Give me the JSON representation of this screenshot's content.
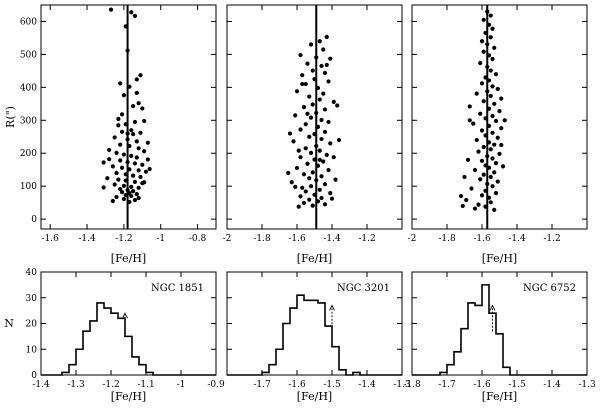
{
  "chart_data": [
    {
      "id": "scatter_ngc1851",
      "type": "scatter",
      "xlabel": "[Fe/H]",
      "ylabel": "R(\")",
      "xlim": [
        -1.65,
        -0.7
      ],
      "ylim": [
        -30,
        650
      ],
      "xticks": [
        -1.6,
        -1.4,
        -1.2,
        -1,
        -0.8
      ],
      "xtick_labels": [
        "-1.6",
        "-1.4",
        "-1.2",
        "-1",
        "-0.8"
      ],
      "yticks": [
        0,
        100,
        200,
        300,
        400,
        500,
        600
      ],
      "ytick_labels": [
        "0",
        "100",
        "200",
        "300",
        "400",
        "500",
        "600"
      ],
      "mean_feh": -1.18,
      "points": [
        [
          -1.27,
          636
        ],
        [
          -1.19,
          585
        ],
        [
          -1.16,
          628
        ],
        [
          -1.14,
          617
        ],
        [
          -1.18,
          512
        ],
        [
          -1.11,
          437
        ],
        [
          -1.13,
          424
        ],
        [
          -1.22,
          412
        ],
        [
          -1.17,
          402
        ],
        [
          -1.13,
          383
        ],
        [
          -1.2,
          376
        ],
        [
          -1.12,
          352
        ],
        [
          -1.15,
          343
        ],
        [
          -1.1,
          336
        ],
        [
          -1.23,
          304
        ],
        [
          -1.19,
          288
        ],
        [
          -1.14,
          295
        ],
        [
          -1.21,
          265
        ],
        [
          -1.16,
          270
        ],
        [
          -1.11,
          262
        ],
        [
          -1.25,
          248
        ],
        [
          -1.18,
          242
        ],
        [
          -1.13,
          236
        ],
        [
          -1.07,
          232
        ],
        [
          -1.22,
          226
        ],
        [
          -1.17,
          222
        ],
        [
          -1.12,
          215
        ],
        [
          -1.09,
          206
        ],
        [
          -1.24,
          201
        ],
        [
          -1.2,
          196
        ],
        [
          -1.16,
          192
        ],
        [
          -1.13,
          187
        ],
        [
          -1.28,
          182
        ],
        [
          -1.22,
          178
        ],
        [
          -1.18,
          173
        ],
        [
          -1.14,
          169
        ],
        [
          -1.1,
          165
        ],
        [
          -1.26,
          160
        ],
        [
          -1.21,
          156
        ],
        [
          -1.17,
          151
        ],
        [
          -1.12,
          148
        ],
        [
          -1.08,
          144
        ],
        [
          -1.24,
          140
        ],
        [
          -1.19,
          136
        ],
        [
          -1.15,
          132
        ],
        [
          -1.11,
          128
        ],
        [
          -1.29,
          124
        ],
        [
          -1.23,
          120
        ],
        [
          -1.19,
          117
        ],
        [
          -1.14,
          113
        ],
        [
          -1.1,
          109
        ],
        [
          -1.25,
          105
        ],
        [
          -1.2,
          101
        ],
        [
          -1.16,
          98
        ],
        [
          -1.12,
          95
        ],
        [
          -1.22,
          91
        ],
        [
          -1.18,
          88
        ],
        [
          -1.15,
          85
        ],
        [
          -1.21,
          82
        ],
        [
          -1.17,
          79
        ],
        [
          -1.13,
          76
        ],
        [
          -1.19,
          73
        ],
        [
          -1.16,
          70
        ],
        [
          -1.24,
          67
        ],
        [
          -1.12,
          64
        ],
        [
          -1.2,
          61
        ],
        [
          -1.14,
          58
        ],
        [
          -1.26,
          55
        ],
        [
          -1.17,
          52
        ],
        [
          -1.09,
          112
        ],
        [
          -1.31,
          96
        ],
        [
          -1.06,
          152
        ],
        [
          -1.28,
          210
        ],
        [
          -1.07,
          181
        ],
        [
          -1.31,
          172
        ],
        [
          -1.18,
          260
        ],
        [
          -1.23,
          285
        ],
        [
          -1.09,
          298
        ],
        [
          -1.21,
          318
        ],
        [
          -1.15,
          258
        ]
      ]
    },
    {
      "id": "scatter_ngc3201",
      "type": "scatter",
      "xlabel": "[Fe/H]",
      "xlim": [
        -2.0,
        -1.0
      ],
      "ylim": [
        -30,
        650
      ],
      "xticks": [
        -2,
        -1.8,
        -1.6,
        -1.4,
        -1.2
      ],
      "xtick_labels": [
        "-2",
        "-1.8",
        "-1.6",
        "-1.4",
        "-1.2"
      ],
      "mean_feh": -1.49,
      "points": [
        [
          -1.43,
          553
        ],
        [
          -1.47,
          540
        ],
        [
          -1.52,
          530
        ],
        [
          -1.45,
          515
        ],
        [
          -1.58,
          498
        ],
        [
          -1.49,
          491
        ],
        [
          -1.41,
          487
        ],
        [
          -1.54,
          472
        ],
        [
          -1.46,
          465
        ],
        [
          -1.51,
          451
        ],
        [
          -1.44,
          444
        ],
        [
          -1.57,
          437
        ],
        [
          -1.5,
          425
        ],
        [
          -1.42,
          418
        ],
        [
          -1.55,
          410
        ],
        [
          -1.48,
          398
        ],
        [
          -1.6,
          388
        ],
        [
          -1.45,
          381
        ],
        [
          -1.53,
          372
        ],
        [
          -1.47,
          363
        ],
        [
          -1.39,
          356
        ],
        [
          -1.51,
          348
        ],
        [
          -1.56,
          340
        ],
        [
          -1.44,
          333
        ],
        [
          -1.49,
          322
        ],
        [
          -1.61,
          315
        ],
        [
          -1.52,
          308
        ],
        [
          -1.46,
          301
        ],
        [
          -1.42,
          295
        ],
        [
          -1.55,
          288
        ],
        [
          -1.48,
          280
        ],
        [
          -1.58,
          272
        ],
        [
          -1.44,
          265
        ],
        [
          -1.5,
          258
        ],
        [
          -1.53,
          250
        ],
        [
          -1.46,
          243
        ],
        [
          -1.62,
          236
        ],
        [
          -1.41,
          230
        ],
        [
          -1.49,
          222
        ],
        [
          -1.55,
          215
        ],
        [
          -1.47,
          208
        ],
        [
          -1.52,
          201
        ],
        [
          -1.43,
          195
        ],
        [
          -1.58,
          188
        ],
        [
          -1.5,
          181
        ],
        [
          -1.45,
          175
        ],
        [
          -1.54,
          168
        ],
        [
          -1.48,
          162
        ],
        [
          -1.6,
          155
        ],
        [
          -1.42,
          149
        ],
        [
          -1.51,
          142
        ],
        [
          -1.56,
          136
        ],
        [
          -1.46,
          130
        ],
        [
          -1.53,
          124
        ],
        [
          -1.49,
          118
        ],
        [
          -1.63,
          112
        ],
        [
          -1.44,
          106
        ],
        [
          -1.52,
          100
        ],
        [
          -1.57,
          95
        ],
        [
          -1.47,
          89
        ],
        [
          -1.55,
          84
        ],
        [
          -1.41,
          79
        ],
        [
          -1.5,
          74
        ],
        [
          -1.58,
          69
        ],
        [
          -1.46,
          64
        ],
        [
          -1.53,
          59
        ],
        [
          -1.48,
          54
        ],
        [
          -1.56,
          49
        ],
        [
          -1.44,
          45
        ],
        [
          -1.51,
          41
        ],
        [
          -1.59,
          38
        ],
        [
          -1.37,
          345
        ],
        [
          -1.64,
          260
        ],
        [
          -1.39,
          188
        ],
        [
          -1.65,
          140
        ],
        [
          -1.38,
          120
        ],
        [
          -1.61,
          98
        ],
        [
          -1.4,
          62
        ],
        [
          -1.57,
          410
        ],
        [
          -1.43,
          468
        ],
        [
          -1.59,
          208
        ],
        [
          -1.36,
          240
        ],
        [
          -1.47,
          180
        ],
        [
          -1.54,
          320
        ]
      ]
    },
    {
      "id": "scatter_ngc6752",
      "type": "scatter",
      "xlabel": "[Fe/H]",
      "xlim": [
        -2.0,
        -1.0
      ],
      "ylim": [
        -30,
        650
      ],
      "xticks": [
        -2,
        -1.8,
        -1.6,
        -1.4,
        -1.2
      ],
      "xtick_labels": [
        "-2",
        "-1.8",
        "-1.6",
        "-1.4",
        "-1.2"
      ],
      "mean_feh": -1.57,
      "points": [
        [
          -1.57,
          630
        ],
        [
          -1.55,
          618
        ],
        [
          -1.59,
          605
        ],
        [
          -1.56,
          590
        ],
        [
          -1.54,
          578
        ],
        [
          -1.58,
          565
        ],
        [
          -1.55,
          552
        ],
        [
          -1.6,
          540
        ],
        [
          -1.57,
          531
        ],
        [
          -1.53,
          520
        ],
        [
          -1.59,
          508
        ],
        [
          -1.56,
          497
        ],
        [
          -1.54,
          486
        ],
        [
          -1.61,
          474
        ],
        [
          -1.57,
          462
        ],
        [
          -1.55,
          451
        ],
        [
          -1.52,
          440
        ],
        [
          -1.58,
          430
        ],
        [
          -1.56,
          421
        ],
        [
          -1.6,
          412
        ],
        [
          -1.54,
          403
        ],
        [
          -1.51,
          395
        ],
        [
          -1.57,
          388
        ],
        [
          -1.63,
          381
        ],
        [
          -1.55,
          374
        ],
        [
          -1.49,
          366
        ],
        [
          -1.59,
          358
        ],
        [
          -1.53,
          350
        ],
        [
          -1.67,
          342
        ],
        [
          -1.56,
          335
        ],
        [
          -1.5,
          328
        ],
        [
          -1.61,
          320
        ],
        [
          -1.54,
          313
        ],
        [
          -1.58,
          306
        ],
        [
          -1.52,
          298
        ],
        [
          -1.65,
          290
        ],
        [
          -1.56,
          283
        ],
        [
          -1.49,
          276
        ],
        [
          -1.6,
          269
        ],
        [
          -1.54,
          262
        ],
        [
          -1.58,
          254
        ],
        [
          -1.51,
          247
        ],
        [
          -1.63,
          240
        ],
        [
          -1.56,
          233
        ],
        [
          -1.53,
          226
        ],
        [
          -1.59,
          219
        ],
        [
          -1.55,
          212
        ],
        [
          -1.62,
          205
        ],
        [
          -1.5,
          198
        ],
        [
          -1.57,
          191
        ],
        [
          -1.54,
          184
        ],
        [
          -1.6,
          177
        ],
        [
          -1.52,
          170
        ],
        [
          -1.58,
          163
        ],
        [
          -1.56,
          156
        ],
        [
          -1.64,
          149
        ],
        [
          -1.53,
          142
        ],
        [
          -1.59,
          135
        ],
        [
          -1.55,
          128
        ],
        [
          -1.61,
          121
        ],
        [
          -1.51,
          114
        ],
        [
          -1.57,
          107
        ],
        [
          -1.54,
          100
        ],
        [
          -1.66,
          93
        ],
        [
          -1.58,
          86
        ],
        [
          -1.52,
          79
        ],
        [
          -1.6,
          72
        ],
        [
          -1.56,
          65
        ],
        [
          -1.69,
          58
        ],
        [
          -1.55,
          51
        ],
        [
          -1.62,
          44
        ],
        [
          -1.58,
          38
        ],
        [
          -1.64,
          32
        ],
        [
          -1.53,
          28
        ],
        [
          -1.72,
          70
        ],
        [
          -1.68,
          180
        ],
        [
          -1.47,
          300
        ],
        [
          -1.7,
          128
        ],
        [
          -1.48,
          160
        ],
        [
          -1.67,
          300
        ],
        [
          -1.49,
          225
        ],
        [
          -1.71,
          40
        ]
      ]
    },
    {
      "id": "hist_ngc1851",
      "type": "bar",
      "label": "NGC 1851",
      "xlabel": "[Fe/H]",
      "ylabel": "N",
      "xlim": [
        -1.4,
        -0.9
      ],
      "ylim": [
        0,
        40
      ],
      "xticks": [
        -1.4,
        -1.3,
        -1.2,
        -1.1,
        -1,
        -0.9
      ],
      "xtick_labels": [
        "-1.4",
        "-1.3",
        "-1.2",
        "-1.1",
        "-1",
        "-0.9"
      ],
      "yticks": [
        0,
        10,
        20,
        30,
        40
      ],
      "ytick_labels": [
        "0",
        "10",
        "20",
        "30",
        "40"
      ],
      "bin_start": -1.4,
      "bin_width": 0.02,
      "counts": [
        0,
        0,
        0,
        1,
        4,
        10,
        17,
        21,
        28,
        26,
        24,
        22,
        15,
        7,
        4,
        1,
        0,
        0,
        0,
        0,
        0,
        0,
        0,
        0,
        0
      ],
      "mean_feh": -1.16,
      "arrow_y": [
        15,
        24
      ]
    },
    {
      "id": "hist_ngc3201",
      "type": "bar",
      "label": "NGC 3201",
      "xlabel": "[Fe/H]",
      "xlim": [
        -1.8,
        -1.3
      ],
      "ylim": [
        0,
        40
      ],
      "xticks": [
        -1.7,
        -1.6,
        -1.5,
        -1.4,
        -1.3
      ],
      "xtick_labels": [
        "-1.7",
        "-1.6",
        "-1.5",
        "-1.4",
        "-1.3"
      ],
      "bin_start": -1.8,
      "bin_width": 0.02,
      "counts": [
        0,
        0,
        0,
        0,
        0,
        1,
        4,
        10,
        20,
        26,
        31,
        29,
        29,
        28,
        19,
        11,
        2,
        0,
        1,
        0,
        0,
        0,
        0,
        0,
        0
      ],
      "mean_feh": -1.5,
      "arrow_y": [
        17,
        27
      ]
    },
    {
      "id": "hist_ngc6752",
      "type": "bar",
      "label": "NGC 6752",
      "xlabel": "[Fe/H]",
      "xlim": [
        -1.8,
        -1.3
      ],
      "ylim": [
        0,
        40
      ],
      "xticks": [
        -1.8,
        -1.7,
        -1.6,
        -1.5,
        -1.4,
        -1.3
      ],
      "xtick_labels": [
        "-1.8",
        "-1.7",
        "-1.6",
        "-1.5",
        "-1.4",
        "-1.3"
      ],
      "bin_start": -1.8,
      "bin_width": 0.02,
      "counts": [
        0,
        0,
        0,
        0,
        1,
        4,
        9,
        18,
        28,
        27,
        35,
        24,
        16,
        3,
        0,
        0,
        0,
        0,
        0,
        0,
        0,
        0,
        0,
        0,
        0
      ],
      "mean_feh": -1.57,
      "arrow_y": [
        17,
        27
      ]
    }
  ]
}
